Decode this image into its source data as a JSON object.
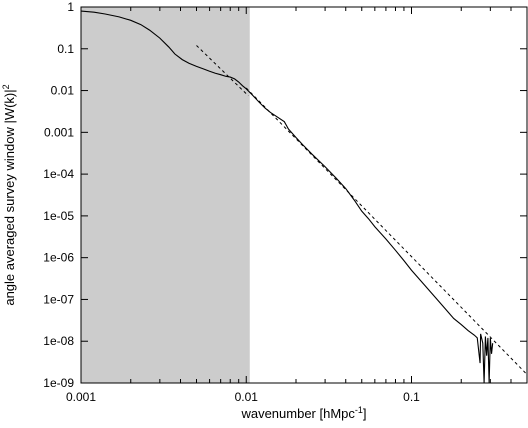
{
  "chart_data": {
    "type": "line",
    "title": "",
    "xlabel": "wavenumber [hMpc",
    "xlabel_sup": "-1",
    "xlabel_end": "]",
    "ylabel": "angle averaged survey window |W(k)|",
    "ylabel_sup": "2",
    "x_scale": "log",
    "y_scale": "log",
    "xlim": [
      0.001,
      0.5
    ],
    "ylim": [
      1e-09,
      1
    ],
    "grid": false,
    "legend": "none",
    "x_tick_labels": [
      {
        "value": 0.001,
        "label": "0.001"
      },
      {
        "value": 0.01,
        "label": "0.01"
      },
      {
        "value": 0.1,
        "label": "0.1"
      }
    ],
    "y_tick_labels": [
      {
        "value": 1,
        "label": "1"
      },
      {
        "value": 0.1,
        "label": "0.1"
      },
      {
        "value": 0.01,
        "label": "0.01"
      },
      {
        "value": 0.001,
        "label": "0.001"
      },
      {
        "value": 0.0001,
        "label": "1e-04"
      },
      {
        "value": 1e-05,
        "label": "1e-05"
      },
      {
        "value": 1e-06,
        "label": "1e-06"
      },
      {
        "value": 1e-07,
        "label": "1e-07"
      },
      {
        "value": 1e-08,
        "label": "1e-08"
      },
      {
        "value": 1e-09,
        "label": "1e-09"
      }
    ],
    "shaded_region": {
      "x_from": 0.001,
      "x_to": 0.0105,
      "color": "#cccccc"
    },
    "series": [
      {
        "style": "solid",
        "color": "#000000",
        "points": [
          [
            0.001,
            0.8
          ],
          [
            0.0012,
            0.75
          ],
          [
            0.0014,
            0.68
          ],
          [
            0.0017,
            0.58
          ],
          [
            0.002,
            0.48
          ],
          [
            0.0023,
            0.38
          ],
          [
            0.0026,
            0.28
          ],
          [
            0.003,
            0.18
          ],
          [
            0.0034,
            0.11
          ],
          [
            0.0037,
            0.075
          ],
          [
            0.0041,
            0.055
          ],
          [
            0.0045,
            0.045
          ],
          [
            0.005,
            0.038
          ],
          [
            0.0055,
            0.033
          ],
          [
            0.006,
            0.029
          ],
          [
            0.0065,
            0.026
          ],
          [
            0.007,
            0.024
          ],
          [
            0.0075,
            0.022
          ],
          [
            0.008,
            0.021
          ],
          [
            0.0085,
            0.019
          ],
          [
            0.009,
            0.016
          ],
          [
            0.0095,
            0.013
          ],
          [
            0.01,
            0.011
          ],
          [
            0.011,
            0.0075
          ],
          [
            0.012,
            0.0052
          ],
          [
            0.013,
            0.0038
          ],
          [
            0.014,
            0.003
          ],
          [
            0.015,
            0.0025
          ],
          [
            0.017,
            0.0018
          ],
          [
            0.018,
            0.0012
          ],
          [
            0.02,
            0.00075
          ],
          [
            0.022,
            0.0005
          ],
          [
            0.025,
            0.0003
          ],
          [
            0.03,
            0.00015
          ],
          [
            0.035,
            8e-05
          ],
          [
            0.04,
            4.5e-05
          ],
          [
            0.045,
            2.4e-05
          ],
          [
            0.05,
            1.3e-05
          ],
          [
            0.055,
            8.5e-06
          ],
          [
            0.06,
            5.5e-06
          ],
          [
            0.07,
            2.8e-06
          ],
          [
            0.08,
            1.5e-06
          ],
          [
            0.09,
            8.5e-07
          ],
          [
            0.1,
            5e-07
          ],
          [
            0.12,
            2.2e-07
          ],
          [
            0.14,
            1.1e-07
          ],
          [
            0.16,
            6e-08
          ],
          [
            0.18,
            3.5e-08
          ],
          [
            0.2,
            2.5e-08
          ],
          [
            0.22,
            1.8e-08
          ],
          [
            0.24,
            1.4e-08
          ],
          [
            0.25,
            1.2e-08
          ],
          [
            0.26,
            3e-09
          ],
          [
            0.262,
            1.5e-08
          ],
          [
            0.27,
            9e-09
          ],
          [
            0.275,
            1e-09
          ],
          [
            0.28,
            1.3e-08
          ],
          [
            0.285,
            4.5e-09
          ],
          [
            0.29,
            1.2e-08
          ],
          [
            0.295,
            1e-09
          ],
          [
            0.3,
            1.2e-08
          ],
          [
            0.305,
            5e-09
          ],
          [
            0.31,
            9e-09
          ]
        ]
      },
      {
        "style": "dashed",
        "color": "#000000",
        "points": [
          [
            0.01,
            0.0115
          ],
          [
            0.5,
            1.6e-09
          ]
        ]
      },
      {
        "style": "dashed",
        "color": "#000000",
        "points": [
          [
            0.005,
            0.12
          ],
          [
            0.0103,
            0.0075
          ]
        ]
      }
    ]
  }
}
